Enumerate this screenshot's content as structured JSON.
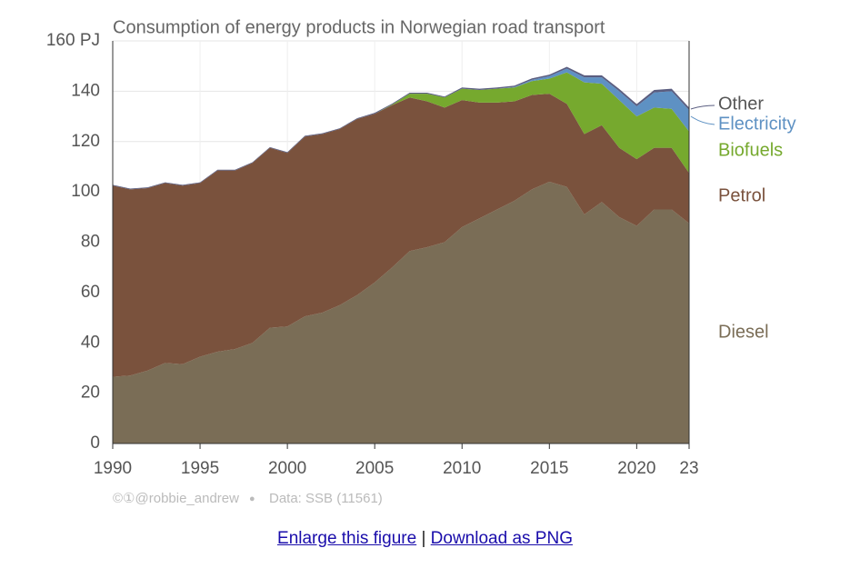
{
  "chart_data": {
    "type": "stacked-area",
    "title": "Consumption of energy products in Norwegian road transport",
    "credit": "©①@robbie_andrew",
    "separator": "●",
    "source": "Data: SSB (11561)",
    "x": [
      1990,
      1991,
      1992,
      1993,
      1994,
      1995,
      1996,
      1997,
      1998,
      1999,
      2000,
      2001,
      2002,
      2003,
      2004,
      2005,
      2006,
      2007,
      2008,
      2009,
      2010,
      2011,
      2012,
      2013,
      2014,
      2015,
      2016,
      2017,
      2018,
      2019,
      2020,
      2021,
      2022,
      2023
    ],
    "series": [
      {
        "name": "Diesel",
        "color": "#7a6d56",
        "values": [
          26.5,
          27,
          29,
          32,
          31.5,
          34.5,
          36.5,
          37.5,
          40,
          46,
          46.5,
          50.5,
          52,
          55,
          59,
          64,
          70,
          76.5,
          78,
          80,
          86,
          89.5,
          93,
          96.5,
          101,
          104,
          102,
          91,
          96,
          90,
          86.5,
          93,
          93,
          87.5
        ]
      },
      {
        "name": "Petrol",
        "color": "#7a523d",
        "values": [
          76,
          74,
          72.5,
          71.5,
          71,
          69,
          72,
          71,
          71.5,
          71.5,
          69,
          71.5,
          71,
          70,
          70,
          67,
          64.5,
          61,
          58,
          53.5,
          50.5,
          46,
          42.5,
          39.5,
          37.5,
          35,
          33,
          32,
          30.5,
          27.5,
          26.5,
          24.5,
          24.5,
          20
        ]
      },
      {
        "name": "Biofuels",
        "color": "#76a92e",
        "values": [
          0,
          0,
          0,
          0,
          0,
          0,
          0,
          0,
          0,
          0,
          0,
          0,
          0,
          0,
          0,
          0,
          0.2,
          1.5,
          3,
          4,
          4.5,
          5,
          5.5,
          5.5,
          5.5,
          6,
          12.5,
          20.5,
          16.5,
          19,
          17,
          16,
          15.5,
          16.5
        ]
      },
      {
        "name": "Electricity",
        "color": "#5e91c3",
        "values": [
          0,
          0,
          0,
          0,
          0,
          0,
          0,
          0,
          0,
          0,
          0,
          0,
          0,
          0,
          0,
          0,
          0,
          0,
          0,
          0,
          0,
          0,
          0,
          0.2,
          0.5,
          1,
          1.5,
          2,
          2.5,
          3.5,
          4,
          6,
          7,
          8.5
        ]
      },
      {
        "name": "Other",
        "color": "#5a5d80",
        "values": [
          0.3,
          0.3,
          0.3,
          0.3,
          0.3,
          0.3,
          0.3,
          0.3,
          0.3,
          0.3,
          0.3,
          0.3,
          0.3,
          0.3,
          0.3,
          0.4,
          0.4,
          0.4,
          0.4,
          0.4,
          0.5,
          0.5,
          0.5,
          0.5,
          0.6,
          0.6,
          0.7,
          0.8,
          0.8,
          0.9,
          0.9,
          1,
          1,
          1
        ]
      }
    ],
    "xlim": [
      1990,
      2023
    ],
    "xticks": [
      1990,
      1995,
      2000,
      2005,
      2010,
      2015,
      2020,
      {
        "value": 2023,
        "label": "23"
      }
    ],
    "ylim": [
      0,
      160
    ],
    "yticks": [
      0,
      20,
      40,
      60,
      80,
      100,
      120,
      140,
      {
        "value": 160,
        "label": "160 PJ"
      }
    ],
    "grid": true
  },
  "links": {
    "enlarge": "Enlarge this figure",
    "divider": "|",
    "download": "Download as PNG"
  }
}
